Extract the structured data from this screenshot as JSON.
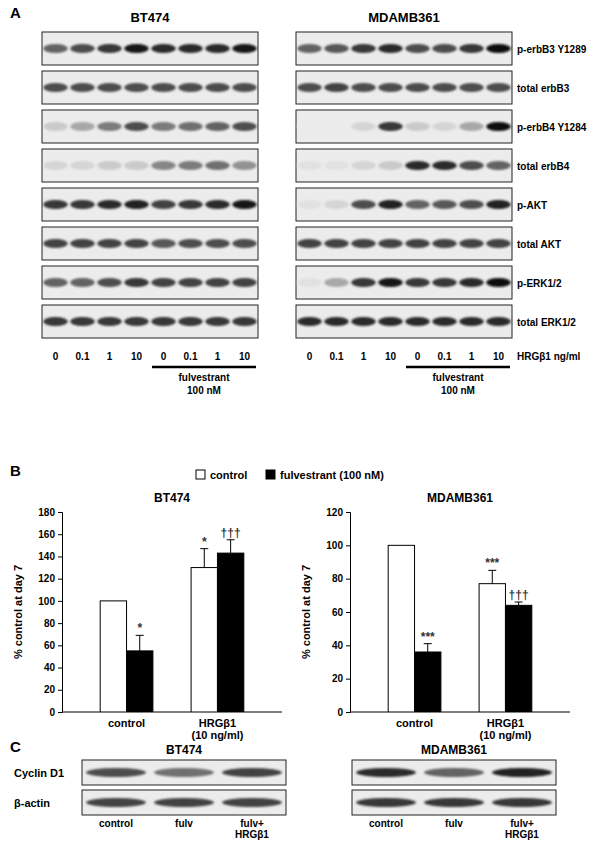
{
  "panel_labels": [
    "A",
    "B",
    "C"
  ],
  "intensity_range": [
    0,
    1
  ],
  "panel_A": {
    "row_labels": [
      "p-erbB3 Y1289",
      "total erbB3",
      "p-erbB4 Y1284",
      "total erbB4",
      "p-AKT",
      "total AKT",
      "p-ERK1/2",
      "total ERK1/2"
    ],
    "lane_labels": [
      "0",
      "0.1",
      "1",
      "10",
      "0",
      "0.1",
      "1",
      "10"
    ],
    "lane_axis_label": "HRGβ1 ng/ml",
    "treatment": "fulvestrant",
    "treatment_dose": "100 nM",
    "cell_lines": [
      {
        "name": "BT474",
        "intensity": [
          [
            0.6,
            0.7,
            0.8,
            0.95,
            0.85,
            0.85,
            0.85,
            0.95
          ],
          [
            0.7,
            0.7,
            0.7,
            0.7,
            0.7,
            0.7,
            0.7,
            0.7
          ],
          [
            0.15,
            0.3,
            0.5,
            0.7,
            0.5,
            0.55,
            0.6,
            0.7
          ],
          [
            0.1,
            0.1,
            0.15,
            0.15,
            0.45,
            0.5,
            0.55,
            0.4
          ],
          [
            0.8,
            0.8,
            0.85,
            0.9,
            0.75,
            0.8,
            0.85,
            0.95
          ],
          [
            0.75,
            0.75,
            0.75,
            0.75,
            0.65,
            0.7,
            0.7,
            0.7
          ],
          [
            0.6,
            0.6,
            0.7,
            0.8,
            0.75,
            0.75,
            0.75,
            0.75
          ],
          [
            0.8,
            0.8,
            0.8,
            0.8,
            0.8,
            0.8,
            0.8,
            0.8
          ]
        ]
      },
      {
        "name": "MDAMB361",
        "intensity": [
          [
            0.6,
            0.65,
            0.8,
            0.85,
            0.7,
            0.7,
            0.8,
            1
          ],
          [
            0.7,
            0.75,
            0.7,
            0.7,
            0.7,
            0.7,
            0.7,
            0.7
          ],
          [
            0,
            0,
            0.1,
            0.8,
            0.15,
            0.1,
            0.3,
            1
          ],
          [
            0.05,
            0.05,
            0.1,
            0.15,
            0.85,
            0.85,
            0.7,
            0.6
          ],
          [
            0.05,
            0.1,
            0.7,
            0.9,
            0.6,
            0.65,
            0.7,
            0.9
          ],
          [
            0.75,
            0.75,
            0.75,
            0.75,
            0.75,
            0.75,
            0.75,
            0.75
          ],
          [
            0.05,
            0.3,
            0.8,
            0.95,
            0.8,
            0.8,
            0.85,
            1
          ],
          [
            0.85,
            0.85,
            0.85,
            0.85,
            0.85,
            0.85,
            0.85,
            0.85
          ]
        ]
      }
    ]
  },
  "chart_data": [
    {
      "type": "bar",
      "title": "BT474",
      "y_label": "% control at day 7",
      "categories": [
        "control",
        "HRGβ1\n(10 ng/ml)"
      ],
      "series": [
        {
          "name": "control",
          "color": "#ffffff",
          "values": [
            100,
            130
          ],
          "errors": [
            null,
            17
          ],
          "annotations": [
            null,
            "*"
          ]
        },
        {
          "name": "fulvestrant (100 nM)",
          "color": "#000000",
          "values": [
            55,
            143
          ],
          "errors": [
            14,
            12
          ],
          "annotations": [
            "*",
            "†††"
          ]
        }
      ],
      "ylim": [
        0,
        180
      ],
      "yticks": [
        0,
        20,
        40,
        60,
        80,
        100,
        120,
        140,
        160,
        180
      ],
      "legend": "top"
    },
    {
      "type": "bar",
      "title": "MDAMB361",
      "y_label": "% control at day 7",
      "categories": [
        "control",
        "HRGβ1\n(10 ng/ml)"
      ],
      "series": [
        {
          "name": "control",
          "color": "#ffffff",
          "values": [
            100,
            77
          ],
          "errors": [
            null,
            8
          ],
          "annotations": [
            null,
            "***"
          ]
        },
        {
          "name": "fulvestrant (100 nM)",
          "color": "#000000",
          "values": [
            36,
            64
          ],
          "errors": [
            5,
            2
          ],
          "annotations": [
            "***",
            "†††"
          ]
        }
      ],
      "ylim": [
        0,
        120
      ],
      "yticks": [
        0,
        20,
        40,
        60,
        80,
        100,
        120
      ]
    }
  ],
  "panel_C": {
    "row_labels": [
      "Cyclin D1",
      "β-actin"
    ],
    "lane_labels": [
      "control",
      "fulv",
      "fulv+\nHRGβ1"
    ],
    "cell_lines": [
      {
        "name": "BT474",
        "intensity": [
          [
            0.7,
            0.55,
            0.75
          ],
          [
            0.75,
            0.75,
            0.75
          ]
        ]
      },
      {
        "name": "MDAMB361",
        "intensity": [
          [
            0.85,
            0.6,
            0.9
          ],
          [
            0.8,
            0.8,
            0.8
          ]
        ]
      }
    ]
  }
}
